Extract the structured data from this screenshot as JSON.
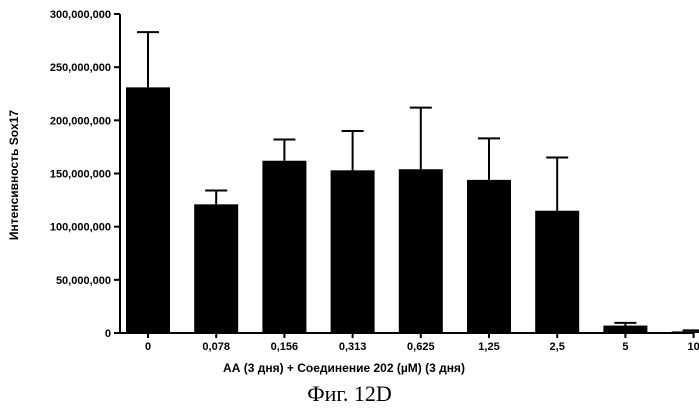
{
  "chart_data": {
    "type": "bar",
    "categories": [
      "0",
      "0,078",
      "0,156",
      "0,313",
      "0,625",
      "1,25",
      "2,5",
      "5",
      "10"
    ],
    "values": [
      231000000,
      121000000,
      162000000,
      153000000,
      154000000,
      144000000,
      115000000,
      7000000,
      1500000
    ],
    "error_upper": [
      283000000,
      134000000,
      182000000,
      190000000,
      212000000,
      183000000,
      165000000,
      9500000,
      2500000
    ],
    "xlabel": "АА (3 дня) + Соединение 202 (µM) (3 дня)",
    "ylabel": "Интенсивность Sox17",
    "ylim": [
      0,
      300000000
    ],
    "y_ticks": [
      0,
      50000000,
      100000000,
      150000000,
      200000000,
      250000000,
      300000000
    ],
    "y_tick_labels": [
      "0",
      "50,000,000",
      "100,000,000",
      "150,000,000",
      "200,000,000",
      "250,000,000",
      "300,000,000"
    ],
    "grid": false,
    "bar_color": "#000000"
  },
  "caption": "Фиг. 12D"
}
